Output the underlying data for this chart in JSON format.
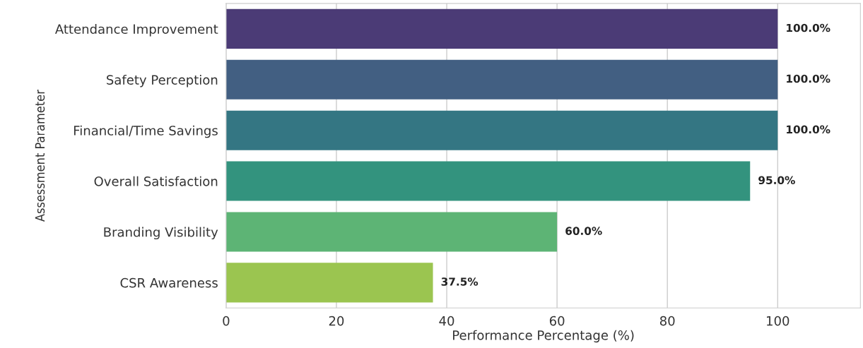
{
  "chart_data": {
    "type": "bar",
    "orientation": "horizontal",
    "xlabel": "Performance Percentage (%)",
    "ylabel": "Assessment Parameter",
    "categories": [
      "Attendance Improvement",
      "Safety Perception",
      "Financial/Time Savings",
      "Overall Satisfaction",
      "Branding Visibility",
      "CSR Awareness"
    ],
    "values": [
      100.0,
      100.0,
      100.0,
      95.0,
      60.0,
      37.5
    ],
    "colors": [
      "#4b3b76",
      "#425f82",
      "#347683",
      "#33937e",
      "#5db475",
      "#9bc550"
    ],
    "value_labels": [
      "100.0%",
      "100.0%",
      "100.0%",
      "95.0%",
      "60.0%",
      "37.5%"
    ],
    "xlim": [
      0,
      115
    ],
    "xticks": [
      0,
      20,
      40,
      60,
      80,
      100
    ],
    "grid": "x",
    "legend": false
  }
}
